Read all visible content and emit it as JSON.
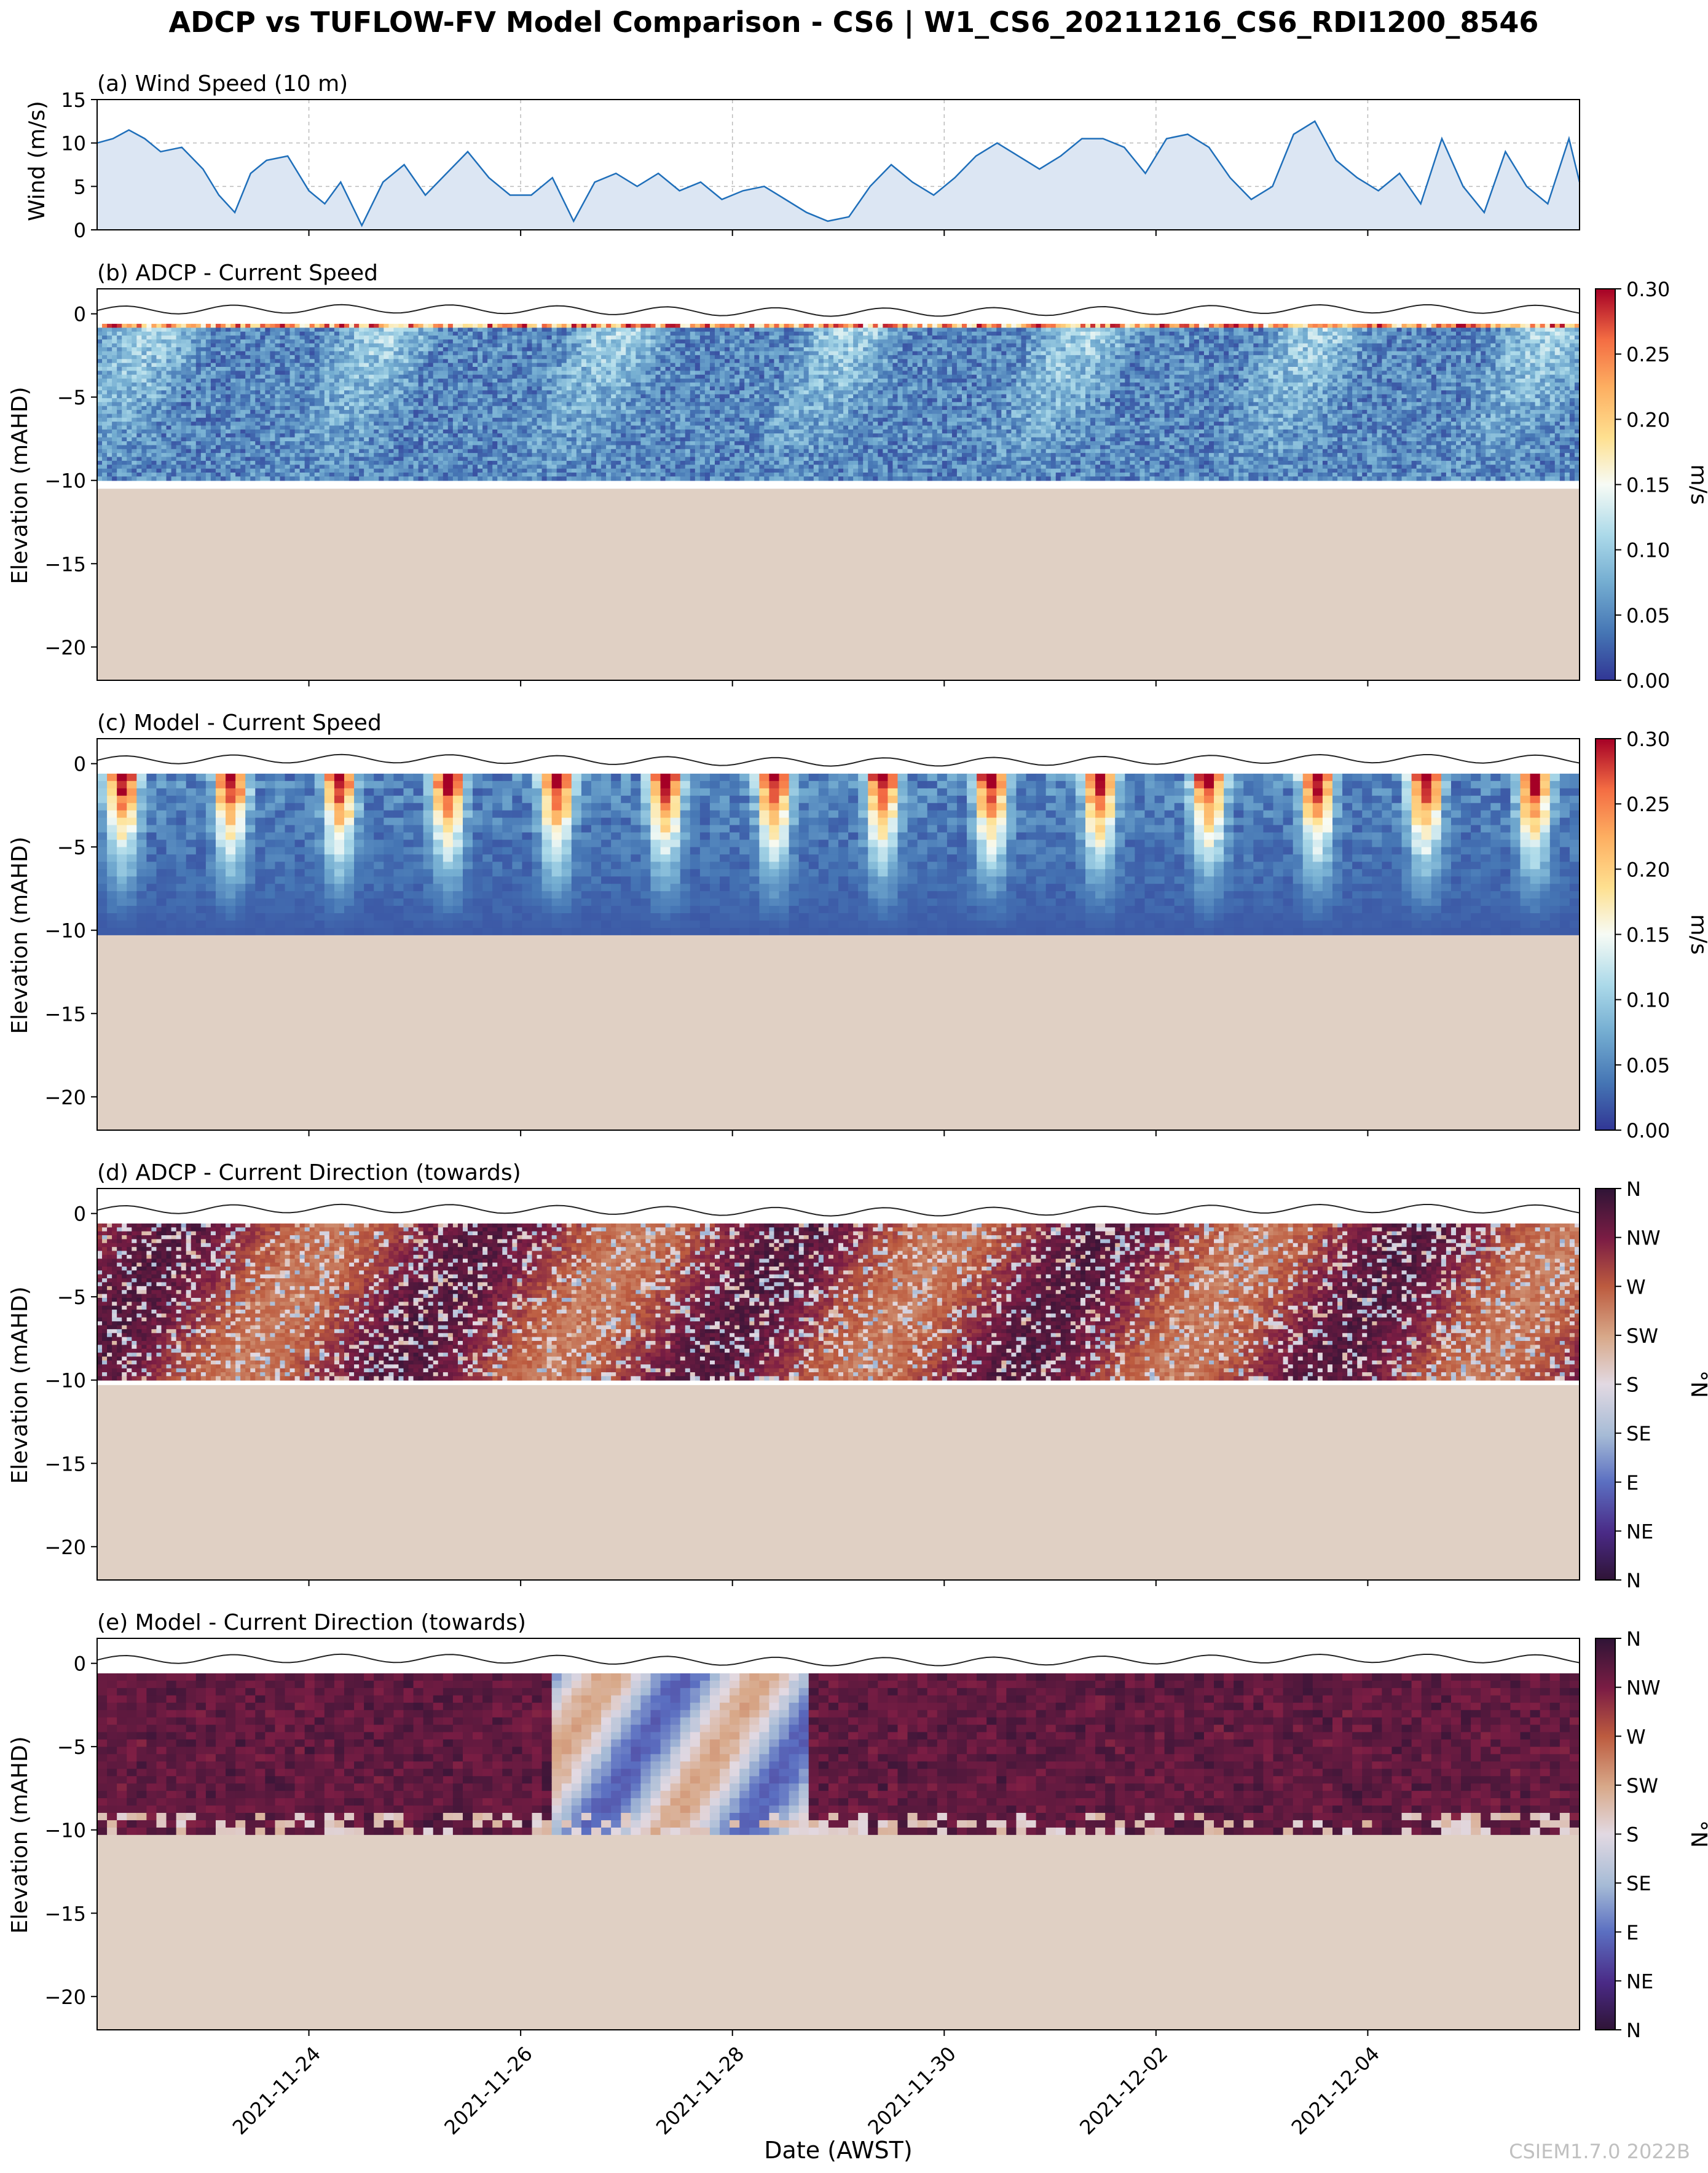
{
  "figure": {
    "title": "ADCP vs TUFLOW-FV Model Comparison - CS6 | W1_CS6_20211216_CS6_RDI1200_8546",
    "xlabel": "Date (AWST)",
    "watermark": "CSIEM1.7.0 2022B",
    "colors": {
      "wind_line": "#1f6fba",
      "wind_fill": "#dce6f3",
      "seabed": "#e0d0c4",
      "surface_line": "#222222",
      "grid": "#bbbbbb"
    }
  },
  "chart_data": [
    {
      "id": "a",
      "type": "area",
      "title": "(a) Wind Speed (10 m)",
      "ylabel": "Wind (m/s)",
      "xlim_days": [
        0,
        14
      ],
      "ylim": [
        0,
        15
      ],
      "yticks": [
        0,
        5,
        10,
        15
      ],
      "xtick_days": [
        2,
        4,
        6,
        8,
        10,
        12
      ],
      "grid": true,
      "x_days": [
        0,
        0.15,
        0.3,
        0.45,
        0.6,
        0.8,
        1.0,
        1.15,
        1.3,
        1.45,
        1.6,
        1.8,
        2.0,
        2.15,
        2.3,
        2.5,
        2.7,
        2.9,
        3.1,
        3.3,
        3.5,
        3.7,
        3.9,
        4.1,
        4.3,
        4.5,
        4.7,
        4.9,
        5.1,
        5.3,
        5.5,
        5.7,
        5.9,
        6.1,
        6.3,
        6.5,
        6.7,
        6.9,
        7.1,
        7.3,
        7.5,
        7.7,
        7.9,
        8.1,
        8.3,
        8.5,
        8.7,
        8.9,
        9.1,
        9.3,
        9.5,
        9.7,
        9.9,
        10.1,
        10.3,
        10.5,
        10.7,
        10.9,
        11.1,
        11.3,
        11.5,
        11.7,
        11.9,
        12.1,
        12.3,
        12.5,
        12.7,
        12.9,
        13.1,
        13.3,
        13.5,
        13.7,
        13.9,
        14.0
      ],
      "values": [
        10,
        10.5,
        11.5,
        10.5,
        9,
        9.5,
        7,
        4,
        2,
        6.5,
        8,
        8.5,
        4.5,
        3,
        5.5,
        0.5,
        5.5,
        7.5,
        4,
        6.5,
        9,
        6,
        4,
        4,
        6,
        1,
        5.5,
        6.5,
        5,
        6.5,
        4.5,
        5.5,
        3.5,
        4.5,
        5,
        3.5,
        2,
        1,
        1.5,
        5,
        7.5,
        5.5,
        4,
        6,
        8.5,
        10,
        8.5,
        7,
        8.5,
        10.5,
        10.5,
        9.5,
        6.5,
        10.5,
        11,
        9.5,
        6,
        3.5,
        5,
        11,
        12.5,
        8,
        6,
        4.5,
        6.5,
        3,
        10.5,
        5,
        2,
        9,
        5,
        3,
        10.5,
        5.5
      ]
    },
    {
      "id": "b",
      "type": "heatmap",
      "title": "(b) ADCP - Current Speed",
      "ylabel": "Elevation (mAHD)",
      "xlim_days": [
        0,
        14
      ],
      "ylim": [
        -22,
        1.5
      ],
      "yticks": [
        0,
        -5,
        -10,
        -15,
        -20
      ],
      "xtick_days": [
        2,
        4,
        6,
        8,
        10,
        12
      ],
      "data_bottom": -10,
      "seabed_top": -10.5,
      "colorbar": {
        "label": "m/s",
        "range": [
          0,
          0.3
        ],
        "ticks": [
          "0.00",
          "0.05",
          "0.10",
          "0.15",
          "0.20",
          "0.25",
          "0.30"
        ],
        "cmap": "RdYlBu_r"
      },
      "description": "observed current speed mostly 0.00-0.10 m/s through the column, with high values near -1 m"
    },
    {
      "id": "c",
      "type": "heatmap",
      "title": "(c) Model - Current Speed",
      "ylabel": "Elevation (mAHD)",
      "xlim_days": [
        0,
        14
      ],
      "ylim": [
        -22,
        1.5
      ],
      "yticks": [
        0,
        -5,
        -10,
        -15,
        -20
      ],
      "xtick_days": [
        2,
        4,
        6,
        8,
        10,
        12
      ],
      "data_bottom": -10.3,
      "seabed_top": -10.3,
      "colorbar": {
        "label": "m/s",
        "range": [
          0,
          0.3
        ],
        "ticks": [
          "0.00",
          "0.05",
          "0.10",
          "0.15",
          "0.20",
          "0.25",
          "0.30"
        ],
        "cmap": "RdYlBu_r"
      },
      "description": "modelled current speed with recurring surface maxima near 0.30 m/s decaying with depth"
    },
    {
      "id": "d",
      "type": "heatmap",
      "title": "(d) ADCP - Current Direction (towards)",
      "ylabel": "Elevation (mAHD)",
      "xlim_days": [
        0,
        14
      ],
      "ylim": [
        -22,
        1.5
      ],
      "yticks": [
        0,
        -5,
        -10,
        -15,
        -20
      ],
      "xtick_days": [
        2,
        4,
        6,
        8,
        10,
        12
      ],
      "data_bottom": -10,
      "seabed_top": -10.3,
      "colorbar": {
        "label": "°N",
        "range": [
          0,
          360
        ],
        "ticks": [
          "N",
          "NE",
          "E",
          "SE",
          "S",
          "SW",
          "W",
          "NW",
          "N"
        ],
        "cmap": "twilight_shifted"
      },
      "description": "observed direction dominated by W-NW with episodes of S-E"
    },
    {
      "id": "e",
      "type": "heatmap",
      "title": "(e) Model - Current Direction (towards)",
      "ylabel": "Elevation (mAHD)",
      "xlim_days": [
        0,
        14
      ],
      "ylim": [
        -22,
        1.5
      ],
      "yticks": [
        0,
        -5,
        -10,
        -15,
        -20
      ],
      "xtick_days": [
        2,
        4,
        6,
        8,
        10,
        12
      ],
      "data_bottom": -10.3,
      "seabed_top": -10.3,
      "colorbar": {
        "label": "°N",
        "range": [
          0,
          360
        ],
        "ticks": [
          "N",
          "NE",
          "E",
          "SE",
          "S",
          "SW",
          "W",
          "NW",
          "N"
        ],
        "cmap": "twilight_shifted"
      },
      "description": "modelled direction mostly NW-N with S-E episodes around 2021-11-27 to 2021-11-28"
    }
  ],
  "xaxis": {
    "start_date": "2021-11-22",
    "tick_labels": [
      "2021-11-24",
      "2021-11-26",
      "2021-11-28",
      "2021-11-30",
      "2021-12-02",
      "2021-12-04"
    ]
  }
}
